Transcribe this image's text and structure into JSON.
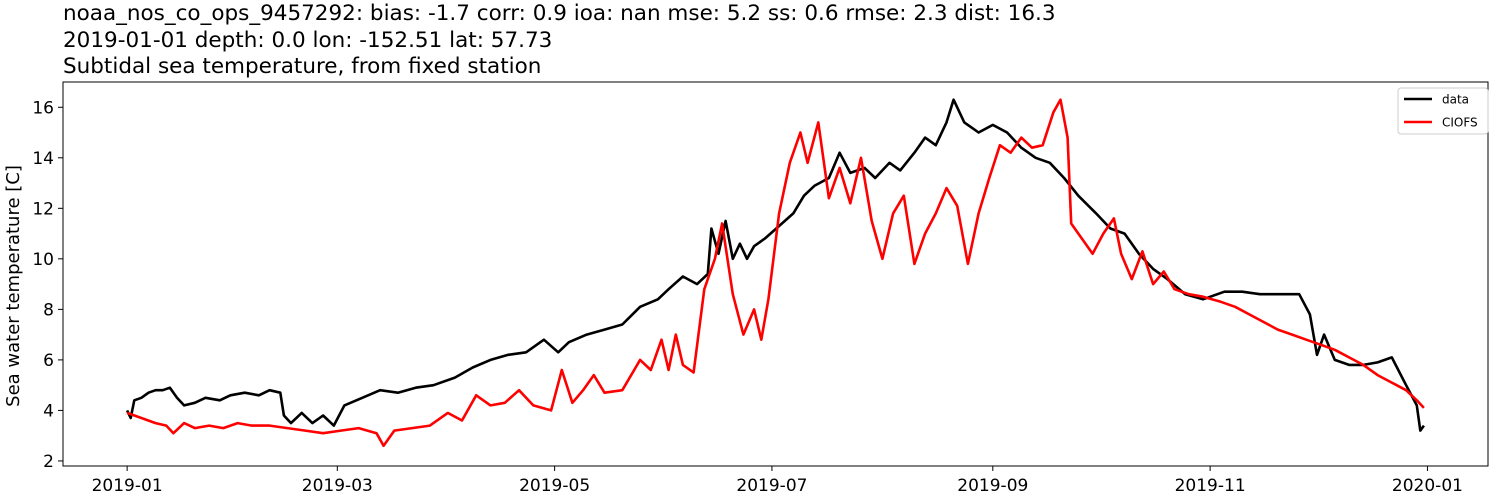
{
  "title_lines": [
    "noaa_nos_co_ops_9457292: bias: -1.7  corr: 0.9  ioa: nan  mse: 5.2  ss: 0.6  rmse: 2.3  dist: 16.3",
    "2019-01-01 depth: 0.0 lon: -152.51 lat: 57.73",
    "Subtidal sea temperature, from fixed station"
  ],
  "chart_data": {
    "type": "line",
    "title": "noaa_nos_co_ops_9457292: bias: -1.7  corr: 0.9  ioa: nan  mse: 5.2  ss: 0.6  rmse: 2.3  dist: 16.3",
    "xlabel": "",
    "ylabel": "Sea water temperature [C]",
    "xlim": [
      "2018-12-14",
      "2020-01-18"
    ],
    "ylim": [
      1.8,
      17.0
    ],
    "x_ticks": [
      "2019-01",
      "2019-03",
      "2019-05",
      "2019-07",
      "2019-09",
      "2019-11",
      "2020-01"
    ],
    "y_ticks": [
      2,
      4,
      6,
      8,
      10,
      12,
      14,
      16
    ],
    "grid": false,
    "legend": "top-right",
    "series": [
      {
        "name": "data",
        "color": "#000000",
        "points": [
          [
            "2019-01-01",
            4.0
          ],
          [
            "2019-01-02",
            3.7
          ],
          [
            "2019-01-03",
            4.4
          ],
          [
            "2019-01-05",
            4.5
          ],
          [
            "2019-01-07",
            4.7
          ],
          [
            "2019-01-09",
            4.8
          ],
          [
            "2019-01-11",
            4.8
          ],
          [
            "2019-01-13",
            4.9
          ],
          [
            "2019-01-15",
            4.5
          ],
          [
            "2019-01-17",
            4.2
          ],
          [
            "2019-01-20",
            4.3
          ],
          [
            "2019-01-23",
            4.5
          ],
          [
            "2019-01-27",
            4.4
          ],
          [
            "2019-01-30",
            4.6
          ],
          [
            "2019-02-03",
            4.7
          ],
          [
            "2019-02-07",
            4.6
          ],
          [
            "2019-02-10",
            4.8
          ],
          [
            "2019-02-13",
            4.7
          ],
          [
            "2019-02-14",
            3.8
          ],
          [
            "2019-02-16",
            3.5
          ],
          [
            "2019-02-19",
            3.9
          ],
          [
            "2019-02-22",
            3.5
          ],
          [
            "2019-02-25",
            3.8
          ],
          [
            "2019-02-28",
            3.4
          ],
          [
            "2019-03-03",
            4.2
          ],
          [
            "2019-03-08",
            4.5
          ],
          [
            "2019-03-13",
            4.8
          ],
          [
            "2019-03-18",
            4.7
          ],
          [
            "2019-03-23",
            4.9
          ],
          [
            "2019-03-28",
            5.0
          ],
          [
            "2019-04-03",
            5.3
          ],
          [
            "2019-04-08",
            5.7
          ],
          [
            "2019-04-13",
            6.0
          ],
          [
            "2019-04-18",
            6.2
          ],
          [
            "2019-04-23",
            6.3
          ],
          [
            "2019-04-28",
            6.8
          ],
          [
            "2019-05-02",
            6.3
          ],
          [
            "2019-05-05",
            6.7
          ],
          [
            "2019-05-10",
            7.0
          ],
          [
            "2019-05-15",
            7.2
          ],
          [
            "2019-05-20",
            7.4
          ],
          [
            "2019-05-25",
            8.1
          ],
          [
            "2019-05-30",
            8.4
          ],
          [
            "2019-06-02",
            8.8
          ],
          [
            "2019-06-06",
            9.3
          ],
          [
            "2019-06-10",
            9.0
          ],
          [
            "2019-06-13",
            9.4
          ],
          [
            "2019-06-14",
            11.2
          ],
          [
            "2019-06-16",
            10.2
          ],
          [
            "2019-06-18",
            11.5
          ],
          [
            "2019-06-20",
            10.0
          ],
          [
            "2019-06-22",
            10.6
          ],
          [
            "2019-06-24",
            10.0
          ],
          [
            "2019-06-26",
            10.5
          ],
          [
            "2019-06-29",
            10.8
          ],
          [
            "2019-07-03",
            11.3
          ],
          [
            "2019-07-07",
            11.8
          ],
          [
            "2019-07-10",
            12.5
          ],
          [
            "2019-07-13",
            12.9
          ],
          [
            "2019-07-17",
            13.2
          ],
          [
            "2019-07-20",
            14.2
          ],
          [
            "2019-07-23",
            13.4
          ],
          [
            "2019-07-27",
            13.6
          ],
          [
            "2019-07-30",
            13.2
          ],
          [
            "2019-08-03",
            13.8
          ],
          [
            "2019-08-06",
            13.5
          ],
          [
            "2019-08-10",
            14.2
          ],
          [
            "2019-08-13",
            14.8
          ],
          [
            "2019-08-16",
            14.5
          ],
          [
            "2019-08-19",
            15.4
          ],
          [
            "2019-08-21",
            16.3
          ],
          [
            "2019-08-24",
            15.4
          ],
          [
            "2019-08-28",
            15.0
          ],
          [
            "2019-09-01",
            15.3
          ],
          [
            "2019-09-05",
            15.0
          ],
          [
            "2019-09-09",
            14.4
          ],
          [
            "2019-09-13",
            14.0
          ],
          [
            "2019-09-17",
            13.8
          ],
          [
            "2019-09-21",
            13.2
          ],
          [
            "2019-09-25",
            12.5
          ],
          [
            "2019-09-30",
            11.8
          ],
          [
            "2019-10-04",
            11.2
          ],
          [
            "2019-10-08",
            11.0
          ],
          [
            "2019-10-12",
            10.2
          ],
          [
            "2019-10-16",
            9.6
          ],
          [
            "2019-10-20",
            9.2
          ],
          [
            "2019-10-25",
            8.6
          ],
          [
            "2019-10-30",
            8.4
          ],
          [
            "2019-11-05",
            8.7
          ],
          [
            "2019-11-10",
            8.7
          ],
          [
            "2019-11-15",
            8.6
          ],
          [
            "2019-11-20",
            8.6
          ],
          [
            "2019-11-26",
            8.6
          ],
          [
            "2019-11-29",
            7.8
          ],
          [
            "2019-12-01",
            6.2
          ],
          [
            "2019-12-03",
            7.0
          ],
          [
            "2019-12-06",
            6.0
          ],
          [
            "2019-12-10",
            5.8
          ],
          [
            "2019-12-14",
            5.8
          ],
          [
            "2019-12-18",
            5.9
          ],
          [
            "2019-12-22",
            6.1
          ],
          [
            "2019-12-26",
            5.0
          ],
          [
            "2019-12-29",
            4.2
          ],
          [
            "2019-12-30",
            3.2
          ],
          [
            "2019-12-31",
            3.4
          ]
        ]
      },
      {
        "name": "CIOFS",
        "color": "#ff0000",
        "points": [
          [
            "2019-01-01",
            3.9
          ],
          [
            "2019-01-05",
            3.7
          ],
          [
            "2019-01-09",
            3.5
          ],
          [
            "2019-01-12",
            3.4
          ],
          [
            "2019-01-14",
            3.1
          ],
          [
            "2019-01-17",
            3.5
          ],
          [
            "2019-01-20",
            3.3
          ],
          [
            "2019-01-24",
            3.4
          ],
          [
            "2019-01-28",
            3.3
          ],
          [
            "2019-02-01",
            3.5
          ],
          [
            "2019-02-05",
            3.4
          ],
          [
            "2019-02-10",
            3.4
          ],
          [
            "2019-02-15",
            3.3
          ],
          [
            "2019-02-20",
            3.2
          ],
          [
            "2019-02-25",
            3.1
          ],
          [
            "2019-03-02",
            3.2
          ],
          [
            "2019-03-07",
            3.3
          ],
          [
            "2019-03-12",
            3.1
          ],
          [
            "2019-03-14",
            2.6
          ],
          [
            "2019-03-17",
            3.2
          ],
          [
            "2019-03-22",
            3.3
          ],
          [
            "2019-03-27",
            3.4
          ],
          [
            "2019-04-01",
            3.9
          ],
          [
            "2019-04-05",
            3.6
          ],
          [
            "2019-04-09",
            4.6
          ],
          [
            "2019-04-13",
            4.2
          ],
          [
            "2019-04-17",
            4.3
          ],
          [
            "2019-04-21",
            4.8
          ],
          [
            "2019-04-25",
            4.2
          ],
          [
            "2019-04-30",
            4.0
          ],
          [
            "2019-05-03",
            5.6
          ],
          [
            "2019-05-06",
            4.3
          ],
          [
            "2019-05-09",
            4.8
          ],
          [
            "2019-05-12",
            5.4
          ],
          [
            "2019-05-15",
            4.7
          ],
          [
            "2019-05-20",
            4.8
          ],
          [
            "2019-05-25",
            6.0
          ],
          [
            "2019-05-28",
            5.6
          ],
          [
            "2019-05-31",
            6.8
          ],
          [
            "2019-06-02",
            5.6
          ],
          [
            "2019-06-04",
            7.0
          ],
          [
            "2019-06-06",
            5.8
          ],
          [
            "2019-06-09",
            5.5
          ],
          [
            "2019-06-12",
            8.8
          ],
          [
            "2019-06-15",
            10.0
          ],
          [
            "2019-06-17",
            11.4
          ],
          [
            "2019-06-20",
            8.6
          ],
          [
            "2019-06-23",
            7.0
          ],
          [
            "2019-06-26",
            8.0
          ],
          [
            "2019-06-28",
            6.8
          ],
          [
            "2019-06-30",
            8.4
          ],
          [
            "2019-07-03",
            11.8
          ],
          [
            "2019-07-06",
            13.8
          ],
          [
            "2019-07-09",
            15.0
          ],
          [
            "2019-07-11",
            13.8
          ],
          [
            "2019-07-14",
            15.4
          ],
          [
            "2019-07-17",
            12.4
          ],
          [
            "2019-07-20",
            13.6
          ],
          [
            "2019-07-23",
            12.2
          ],
          [
            "2019-07-26",
            14.0
          ],
          [
            "2019-07-29",
            11.5
          ],
          [
            "2019-08-01",
            10.0
          ],
          [
            "2019-08-04",
            11.8
          ],
          [
            "2019-08-07",
            12.5
          ],
          [
            "2019-08-10",
            9.8
          ],
          [
            "2019-08-13",
            11.0
          ],
          [
            "2019-08-16",
            11.8
          ],
          [
            "2019-08-19",
            12.8
          ],
          [
            "2019-08-22",
            12.1
          ],
          [
            "2019-08-25",
            9.8
          ],
          [
            "2019-08-28",
            11.8
          ],
          [
            "2019-08-31",
            13.2
          ],
          [
            "2019-09-03",
            14.5
          ],
          [
            "2019-09-06",
            14.2
          ],
          [
            "2019-09-09",
            14.8
          ],
          [
            "2019-09-12",
            14.4
          ],
          [
            "2019-09-15",
            14.5
          ],
          [
            "2019-09-18",
            15.8
          ],
          [
            "2019-09-20",
            16.3
          ],
          [
            "2019-09-22",
            14.8
          ],
          [
            "2019-09-23",
            11.4
          ],
          [
            "2019-09-26",
            10.8
          ],
          [
            "2019-09-29",
            10.2
          ],
          [
            "2019-10-02",
            11.0
          ],
          [
            "2019-10-05",
            11.6
          ],
          [
            "2019-10-07",
            10.2
          ],
          [
            "2019-10-10",
            9.2
          ],
          [
            "2019-10-13",
            10.3
          ],
          [
            "2019-10-16",
            9.0
          ],
          [
            "2019-10-19",
            9.5
          ],
          [
            "2019-10-22",
            8.8
          ],
          [
            "2019-10-26",
            8.6
          ],
          [
            "2019-10-30",
            8.5
          ],
          [
            "2019-11-04",
            8.3
          ],
          [
            "2019-11-08",
            8.1
          ],
          [
            "2019-11-12",
            7.8
          ],
          [
            "2019-11-16",
            7.5
          ],
          [
            "2019-11-20",
            7.2
          ],
          [
            "2019-11-24",
            7.0
          ],
          [
            "2019-11-28",
            6.8
          ],
          [
            "2019-12-02",
            6.6
          ],
          [
            "2019-12-06",
            6.4
          ],
          [
            "2019-12-10",
            6.1
          ],
          [
            "2019-12-14",
            5.8
          ],
          [
            "2019-12-18",
            5.4
          ],
          [
            "2019-12-22",
            5.1
          ],
          [
            "2019-12-26",
            4.8
          ],
          [
            "2019-12-29",
            4.4
          ],
          [
            "2019-12-31",
            4.1
          ]
        ]
      }
    ]
  }
}
